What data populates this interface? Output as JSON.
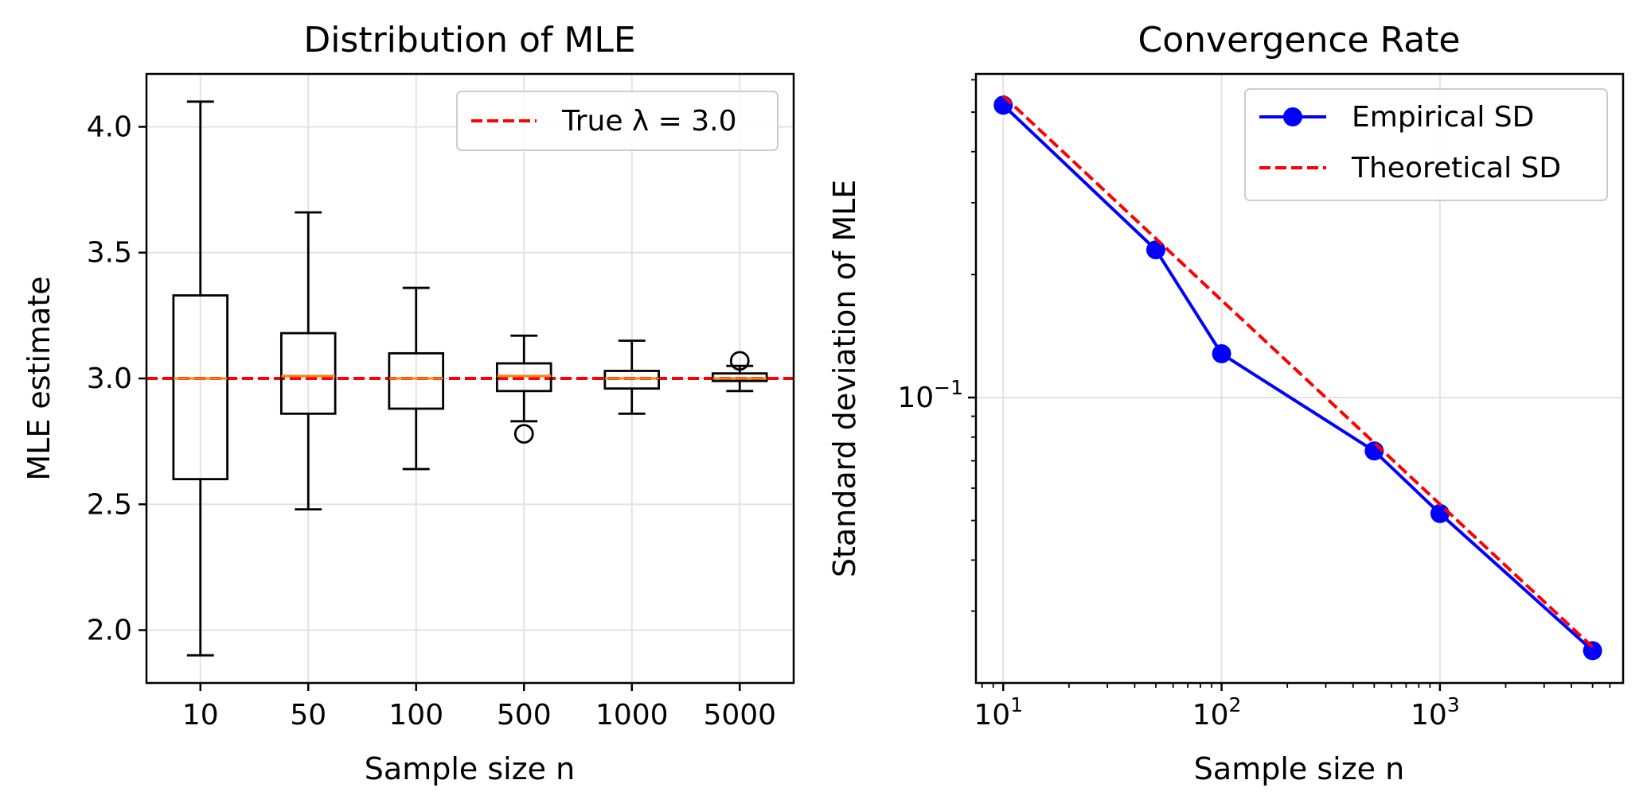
{
  "chart_data": [
    {
      "type": "box",
      "title": "Distribution of MLE",
      "xlabel": "Sample size n",
      "ylabel": "MLE estimate",
      "categories": [
        "10",
        "50",
        "100",
        "500",
        "1000",
        "5000"
      ],
      "ylim": [
        1.79,
        4.21
      ],
      "yticks": [
        2.0,
        2.5,
        3.0,
        3.5,
        4.0
      ],
      "ytick_labels": [
        "2.0",
        "2.5",
        "3.0",
        "3.5",
        "4.0"
      ],
      "grid": true,
      "boxes": [
        {
          "category": "10",
          "whisker_low": 1.9,
          "q1": 2.6,
          "median": 3.0,
          "q3": 3.33,
          "whisker_high": 4.1,
          "outliers": []
        },
        {
          "category": "50",
          "whisker_low": 2.48,
          "q1": 2.86,
          "median": 3.01,
          "q3": 3.18,
          "whisker_high": 3.66,
          "outliers": []
        },
        {
          "category": "100",
          "whisker_low": 2.64,
          "q1": 2.88,
          "median": 3.0,
          "q3": 3.1,
          "whisker_high": 3.36,
          "outliers": []
        },
        {
          "category": "500",
          "whisker_low": 2.83,
          "q1": 2.95,
          "median": 3.01,
          "q3": 3.06,
          "whisker_high": 3.17,
          "outliers": [
            2.78
          ]
        },
        {
          "category": "1000",
          "whisker_low": 2.86,
          "q1": 2.96,
          "median": 3.0,
          "q3": 3.03,
          "whisker_high": 3.15,
          "outliers": []
        },
        {
          "category": "5000",
          "whisker_low": 2.95,
          "q1": 2.99,
          "median": 3.0,
          "q3": 3.02,
          "whisker_high": 3.05,
          "outliers": [
            3.07
          ]
        }
      ],
      "reference_line": {
        "y": 3.0,
        "label": "True λ = 3.0",
        "color": "#ff0000",
        "style": "dashed"
      },
      "median_color": "#ff7f0e",
      "legend_position": "upper right"
    },
    {
      "type": "line",
      "title": "Convergence Rate",
      "xlabel": "Sample size n",
      "ylabel": "Standard deviation of MLE",
      "x_scale": "log",
      "y_scale": "log",
      "xlim": [
        7.5,
        6900
      ],
      "ylim": [
        0.02,
        0.62
      ],
      "xtick_labels": [
        {
          "value": 10,
          "base": "10",
          "exp": "1"
        },
        {
          "value": 100,
          "base": "10",
          "exp": "2"
        },
        {
          "value": 1000,
          "base": "10",
          "exp": "3"
        }
      ],
      "ytick_labels": [
        {
          "value": 0.1,
          "base": "10",
          "exp": "−1"
        }
      ],
      "grid": true,
      "series": [
        {
          "name": "Empirical SD",
          "color": "#0000ff",
          "style": "solid",
          "marker": "circle",
          "x": [
            10,
            50,
            100,
            500,
            1000,
            5000
          ],
          "y": [
            0.52,
            0.23,
            0.128,
            0.074,
            0.052,
            0.024
          ]
        },
        {
          "name": "Theoretical SD",
          "color": "#ff0000",
          "style": "dashed",
          "marker": "none",
          "x": [
            10,
            50,
            100,
            500,
            1000,
            5000
          ],
          "y": [
            0.548,
            0.245,
            0.173,
            0.0775,
            0.0548,
            0.0245
          ]
        }
      ],
      "legend_position": "upper right"
    }
  ]
}
